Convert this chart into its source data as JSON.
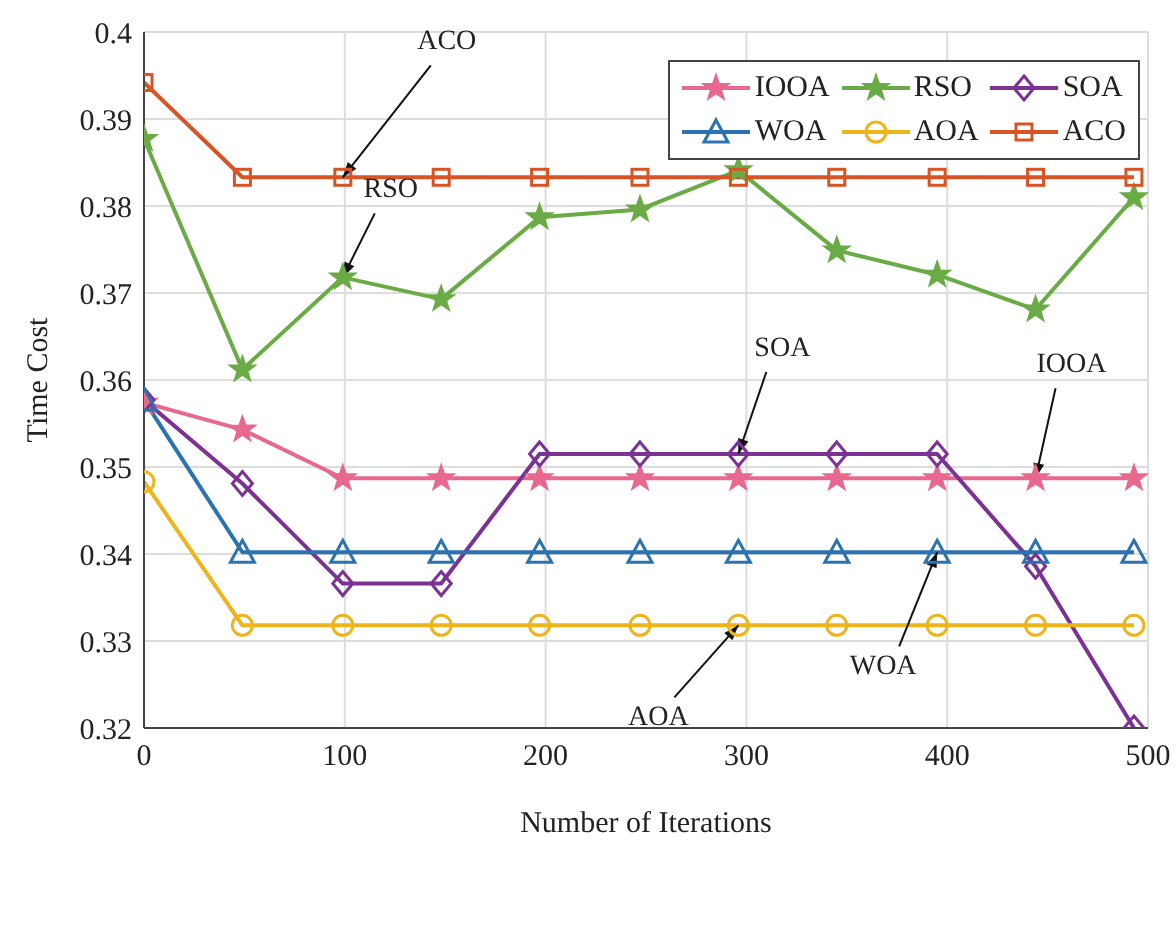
{
  "chart_data": {
    "type": "line",
    "xlabel": "Number of Iterations",
    "ylabel": "Time Cost",
    "x": [
      0,
      49,
      99,
      148,
      197,
      247,
      296,
      345,
      395,
      444,
      493
    ],
    "xlim": [
      0,
      500
    ],
    "xticks": [
      0,
      100,
      200,
      300,
      400,
      500
    ],
    "ylim": [
      0.32,
      0.4
    ],
    "yticks": [
      0.32,
      0.33,
      0.34,
      0.35,
      0.36,
      0.37,
      0.38,
      0.39,
      0.4
    ],
    "grid": true,
    "legend": "top right",
    "line_style": "solid",
    "series": [
      {
        "name": "IOOA",
        "color": "#e8688f",
        "marker": "star",
        "values": [
          0.3574,
          0.3543,
          0.3487,
          0.3487,
          0.3487,
          0.3487,
          0.3487,
          0.3487,
          0.3487,
          0.3487,
          0.3487
        ]
      },
      {
        "name": "RSO",
        "color": "#6aab46",
        "marker": "star",
        "values": [
          0.3877,
          0.3612,
          0.3718,
          0.3693,
          0.3787,
          0.3796,
          0.3841,
          0.3749,
          0.3721,
          0.3681,
          0.381
        ]
      },
      {
        "name": "SOA",
        "color": "#7b3294",
        "marker": "diamond",
        "values": [
          0.3577,
          0.3481,
          0.3366,
          0.3366,
          0.3515,
          0.3515,
          0.3515,
          0.3515,
          0.3515,
          0.3386,
          0.32
        ]
      },
      {
        "name": "WOA",
        "color": "#2b72b0",
        "marker": "triangle",
        "values": [
          0.3577,
          0.3402,
          0.3402,
          0.3402,
          0.3402,
          0.3402,
          0.3402,
          0.3402,
          0.3402,
          0.3402,
          0.3402
        ]
      },
      {
        "name": "AOA",
        "color": "#edb51b",
        "marker": "circle",
        "values": [
          0.3483,
          0.3318,
          0.3318,
          0.3318,
          0.3318,
          0.3318,
          0.3318,
          0.3318,
          0.3318,
          0.3318,
          0.3318
        ]
      },
      {
        "name": "ACO",
        "color": "#d95424",
        "marker": "square",
        "values": [
          0.3942,
          0.3833,
          0.3833,
          0.3833,
          0.3833,
          0.3833,
          0.3833,
          0.3833,
          0.3833,
          0.3833,
          0.3833
        ]
      }
    ],
    "annotations": [
      {
        "text": "ACO",
        "x": 99,
        "y": 0.3833
      },
      {
        "text": "RSO",
        "x": 99,
        "y": 0.3718
      },
      {
        "text": "SOA",
        "x": 296,
        "y": 0.3515
      },
      {
        "text": "IOOA",
        "x": 444,
        "y": 0.3487
      },
      {
        "text": "WOA",
        "x": 395,
        "y": 0.3402
      },
      {
        "text": "AOA",
        "x": 296,
        "y": 0.3318
      }
    ]
  }
}
